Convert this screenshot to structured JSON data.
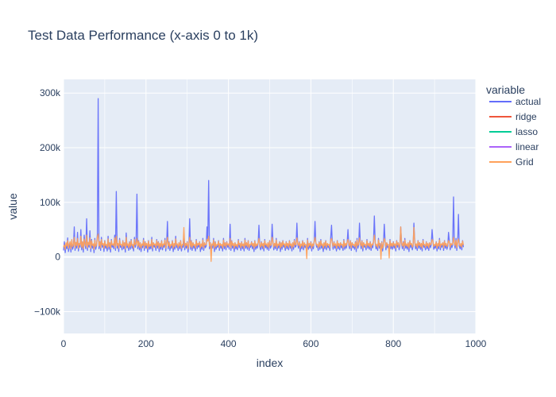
{
  "chart_data": {
    "type": "line",
    "title": "Test Data Performance (x-axis 0 to 1k)",
    "xlabel": "index",
    "ylabel": "value",
    "xlim": [
      0,
      1000
    ],
    "ylim": [
      -140000,
      325000
    ],
    "x_ticks": [
      0,
      200,
      400,
      600,
      800,
      1000
    ],
    "x_tick_labels": [
      "0",
      "200",
      "400",
      "600",
      "800",
      "1000"
    ],
    "y_ticks": [
      -100000,
      0,
      100000,
      200000,
      300000
    ],
    "y_tick_labels": [
      "−100k",
      "0",
      "100k",
      "200k",
      "300k"
    ],
    "grid": true,
    "legend": {
      "title": "variable",
      "placement": "right"
    },
    "x_step": 2,
    "series": [
      {
        "name": "actual",
        "color": "#636efa",
        "values": [
          12000,
          28000,
          8000,
          22000,
          15000,
          35000,
          10000,
          18000,
          25000,
          9000,
          30000,
          14000,
          20000,
          55000,
          12000,
          26000,
          16000,
          45000,
          11000,
          24000,
          18000,
          50000,
          13000,
          28000,
          9000,
          40000,
          22000,
          15000,
          70000,
          12000,
          26000,
          18000,
          48000,
          10000,
          32000,
          16000,
          22000,
          8000,
          34000,
          14000,
          20000,
          42000,
          290000,
          15000,
          28000,
          12000,
          36000,
          18000,
          24000,
          10000,
          30000,
          16000,
          20000,
          11000,
          38000,
          14000,
          26000,
          9000,
          32000,
          18000,
          22000,
          15000,
          40000,
          12000,
          120000,
          16000,
          24000,
          10000,
          34000,
          18000,
          20000,
          13000,
          30000,
          15000,
          26000,
          9000,
          44000,
          17000,
          22000,
          12000,
          28000,
          14000,
          32000,
          16000,
          20000,
          11000,
          36000,
          18000,
          24000,
          115000,
          15000,
          30000,
          13000,
          26000,
          10000,
          22000,
          17000,
          34000,
          12000,
          28000,
          16000,
          24000,
          9000,
          30000,
          14000,
          20000,
          15000,
          36000,
          11000,
          26000,
          18000,
          22000,
          12000,
          32000,
          16000,
          28000,
          10000,
          24000,
          14000,
          30000,
          13000,
          22000,
          18000,
          34000,
          11000,
          26000,
          65000,
          15000,
          28000,
          12000,
          20000,
          16000,
          30000,
          10000,
          24000,
          14000,
          38000,
          17000,
          22000,
          12000,
          26000,
          15000,
          30000,
          11000,
          20000,
          18000,
          34000,
          13000,
          24000,
          16000,
          28000,
          9000,
          22000,
          70000,
          14000,
          30000,
          12000,
          26000,
          16000,
          20000,
          11000,
          32000,
          15000,
          24000,
          18000,
          28000,
          10000,
          22000,
          14000,
          34000,
          12000,
          26000,
          17000,
          20000,
          55000,
          30000,
          140000,
          15000,
          26000,
          12000,
          22000,
          16000,
          34000,
          10000,
          28000,
          14000,
          20000,
          18000,
          30000,
          12000,
          24000,
          16000,
          20000,
          11000,
          34000,
          15000,
          26000,
          13000,
          28000,
          18000,
          22000,
          14000,
          60000,
          12000,
          30000,
          16000,
          24000,
          10000,
          26000,
          15000,
          20000,
          13000,
          32000,
          17000,
          24000,
          12000,
          28000,
          15000,
          22000,
          11000,
          34000,
          16000,
          26000,
          14000,
          30000,
          12000,
          20000,
          18000,
          28000,
          15000,
          24000,
          10000,
          30000,
          14000,
          22000,
          16000,
          26000,
          58000,
          20000,
          13000,
          28000,
          15000,
          24000,
          11000,
          32000,
          17000,
          22000,
          14000,
          26000,
          12000,
          30000,
          16000,
          20000,
          60000,
          28000,
          13000,
          24000,
          15000,
          34000,
          12000,
          22000,
          16000,
          28000,
          10000,
          26000,
          14000,
          30000,
          18000,
          22000,
          12000,
          28000,
          15000,
          24000,
          13000,
          30000,
          16000,
          22000,
          11000,
          26000,
          14000,
          32000,
          18000,
          20000,
          62000,
          24000,
          16000,
          28000,
          10000,
          22000,
          15000,
          30000,
          13000,
          26000,
          17000,
          20000,
          12000,
          34000,
          14000,
          24000,
          16000,
          28000,
          11000,
          22000,
          15000,
          30000,
          65000,
          26000,
          18000,
          20000,
          12000,
          28000,
          14000,
          32000,
          16000,
          22000,
          10000,
          26000,
          15000,
          30000,
          13000,
          24000,
          17000,
          20000,
          12000,
          34000,
          58000,
          26000,
          14000,
          28000,
          16000,
          22000,
          11000,
          30000,
          15000,
          24000,
          13000,
          26000,
          17000,
          20000,
          12000,
          32000,
          14000,
          24000,
          16000,
          28000,
          50000,
          22000,
          15000,
          30000,
          12000,
          26000,
          17000,
          20000,
          14000,
          28000,
          10000,
          34000,
          16000,
          22000,
          62000,
          24000,
          15000,
          30000,
          11000,
          26000,
          18000,
          20000,
          13000,
          32000,
          16000,
          24000,
          14000,
          28000,
          12000,
          22000,
          17000,
          30000,
          75000,
          26000,
          15000,
          20000,
          12000,
          34000,
          16000,
          24000,
          14000,
          28000,
          11000,
          22000,
          60000,
          30000,
          13000,
          26000,
          17000,
          20000,
          12000,
          32000,
          15000,
          24000,
          14000,
          28000,
          16000,
          22000,
          11000,
          30000,
          18000,
          26000,
          13000,
          20000,
          55000,
          24000,
          15000,
          28000,
          12000,
          34000,
          16000,
          22000,
          14000,
          26000,
          10000,
          30000,
          17000,
          24000,
          13000,
          20000,
          62000,
          28000,
          15000,
          22000,
          12000,
          30000,
          16000,
          26000,
          14000,
          24000,
          11000,
          32000,
          18000,
          20000,
          13000,
          28000,
          15000,
          24000,
          12000,
          26000,
          17000,
          22000,
          50000,
          30000,
          14000,
          20000,
          16000,
          28000,
          11000,
          24000,
          15000,
          34000,
          13000,
          22000,
          18000,
          26000,
          12000,
          30000,
          16000,
          24000,
          14000,
          20000,
          45000,
          28000,
          13000,
          24000,
          17000,
          22000,
          110000,
          26000,
          16000,
          34000,
          12000,
          28000,
          78000,
          20000,
          15000,
          24000,
          13000,
          30000,
          18000
        ]
      },
      {
        "name": "ridge",
        "color": "#ef553b",
        "values": []
      },
      {
        "name": "lasso",
        "color": "#00cc96",
        "values": []
      },
      {
        "name": "linear",
        "color": "#ab63fa",
        "values": []
      },
      {
        "name": "Grid",
        "color": "#ffa15a",
        "values": [
          18000,
          22000,
          14000,
          26000,
          20000,
          30000,
          16000,
          24000,
          28000,
          15000,
          32000,
          19000,
          23000,
          36000,
          17000,
          27000,
          21000,
          34000,
          16000,
          25000,
          22000,
          38000,
          18000,
          28000,
          15000,
          33000,
          24000,
          20000,
          40000,
          17000,
          27000,
          22000,
          35000,
          16000,
          30000,
          21000,
          24000,
          14000,
          31000,
          19000,
          23000,
          36000,
          42000,
          20000,
          28000,
          17000,
          32000,
          22000,
          25000,
          16000,
          29000,
          21000,
          23000,
          17000,
          33000,
          19000,
          26000,
          15000,
          30000,
          22000,
          24000,
          20000,
          35000,
          17000,
          38000,
          21000,
          25000,
          16000,
          31000,
          22000,
          23000,
          18000,
          29000,
          20000,
          26000,
          15000,
          36000,
          21000,
          24000,
          17000,
          27000,
          19000,
          30000,
          21000,
          23000,
          16000,
          32000,
          22000,
          25000,
          34000,
          20000,
          29000,
          18000,
          26000,
          16000,
          24000,
          21000,
          31000,
          17000,
          27000,
          21000,
          25000,
          15000,
          29000,
          19000,
          23000,
          20000,
          32000,
          16000,
          26000,
          22000,
          24000,
          17000,
          30000,
          21000,
          27000,
          16000,
          25000,
          19000,
          29000,
          18000,
          24000,
          22000,
          31000,
          16000,
          26000,
          36000,
          20000,
          27000,
          17000,
          23000,
          21000,
          29000,
          16000,
          25000,
          19000,
          33000,
          22000,
          24000,
          17000,
          26000,
          20000,
          29000,
          16000,
          23000,
          22000,
          54000,
          18000,
          25000,
          21000,
          27000,
          15000,
          24000,
          36000,
          19000,
          29000,
          17000,
          26000,
          21000,
          23000,
          16000,
          30000,
          20000,
          25000,
          22000,
          27000,
          16000,
          24000,
          19000,
          31000,
          17000,
          26000,
          22000,
          23000,
          32000,
          29000,
          38000,
          20000,
          26000,
          -8000,
          24000,
          21000,
          31000,
          16000,
          27000,
          19000,
          23000,
          22000,
          29000,
          17000,
          25000,
          21000,
          23000,
          16000,
          31000,
          20000,
          26000,
          18000,
          27000,
          22000,
          24000,
          19000,
          34000,
          17000,
          29000,
          21000,
          25000,
          16000,
          26000,
          20000,
          23000,
          18000,
          30000,
          22000,
          25000,
          17000,
          27000,
          20000,
          24000,
          16000,
          31000,
          21000,
          26000,
          19000,
          29000,
          17000,
          23000,
          22000,
          27000,
          20000,
          25000,
          16000,
          29000,
          19000,
          24000,
          21000,
          26000,
          34000,
          23000,
          18000,
          27000,
          20000,
          25000,
          16000,
          30000,
          22000,
          24000,
          19000,
          26000,
          17000,
          29000,
          21000,
          23000,
          36000,
          27000,
          18000,
          25000,
          20000,
          31000,
          17000,
          24000,
          21000,
          27000,
          16000,
          26000,
          19000,
          29000,
          22000,
          24000,
          17000,
          27000,
          20000,
          25000,
          18000,
          29000,
          21000,
          24000,
          16000,
          26000,
          19000,
          30000,
          22000,
          23000,
          35000,
          25000,
          21000,
          27000,
          16000,
          24000,
          20000,
          29000,
          18000,
          26000,
          22000,
          23000,
          -3000,
          31000,
          19000,
          25000,
          21000,
          27000,
          16000,
          24000,
          20000,
          29000,
          36000,
          26000,
          22000,
          23000,
          17000,
          27000,
          19000,
          30000,
          21000,
          24000,
          16000,
          26000,
          20000,
          29000,
          18000,
          25000,
          22000,
          23000,
          17000,
          31000,
          34000,
          26000,
          19000,
          27000,
          21000,
          24000,
          16000,
          29000,
          20000,
          25000,
          18000,
          26000,
          22000,
          23000,
          17000,
          30000,
          19000,
          25000,
          21000,
          27000,
          32000,
          24000,
          20000,
          29000,
          17000,
          26000,
          22000,
          23000,
          19000,
          27000,
          16000,
          31000,
          21000,
          24000,
          35000,
          25000,
          20000,
          29000,
          16000,
          26000,
          22000,
          23000,
          18000,
          30000,
          21000,
          25000,
          19000,
          27000,
          17000,
          24000,
          22000,
          29000,
          40000,
          26000,
          20000,
          23000,
          17000,
          31000,
          21000,
          25000,
          -4000,
          27000,
          16000,
          24000,
          34000,
          29000,
          18000,
          26000,
          22000,
          23000,
          -2000,
          30000,
          20000,
          25000,
          19000,
          27000,
          21000,
          24000,
          16000,
          29000,
          22000,
          26000,
          18000,
          23000,
          55000,
          25000,
          20000,
          27000,
          17000,
          31000,
          21000,
          24000,
          19000,
          26000,
          16000,
          29000,
          22000,
          25000,
          18000,
          23000,
          54000,
          27000,
          20000,
          24000,
          17000,
          29000,
          21000,
          26000,
          19000,
          25000,
          16000,
          30000,
          22000,
          23000,
          18000,
          27000,
          20000,
          25000,
          17000,
          26000,
          22000,
          24000,
          32000,
          29000,
          19000,
          23000,
          21000,
          27000,
          16000,
          25000,
          20000,
          31000,
          18000,
          24000,
          22000,
          26000,
          17000,
          29000,
          21000,
          25000,
          19000,
          23000,
          30000,
          27000,
          18000,
          25000,
          22000,
          24000,
          36000,
          26000,
          21000,
          31000,
          17000,
          27000,
          33000,
          23000,
          20000,
          25000,
          18000,
          29000,
          22000
        ]
      }
    ]
  }
}
